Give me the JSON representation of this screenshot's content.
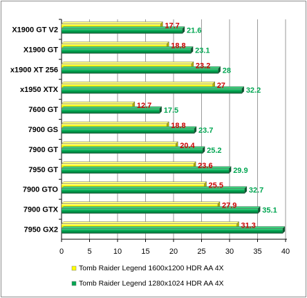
{
  "chart_data": {
    "type": "bar",
    "orientation": "horizontal",
    "categories": [
      "X1900 GT V2",
      "X1900 GT",
      "x1900 XT 256",
      "x1950 XTX",
      "7600 GT",
      "7900 GS",
      "7900 GT",
      "7950 GT",
      "7900 GTO",
      "7900 GTX",
      "7950 GX2"
    ],
    "series": [
      {
        "name": "Tomb Raider Legend 1600x1200 HDR AA 4X",
        "color": "#ffff00",
        "label_color": "#cc0000",
        "values": [
          17.7,
          18.8,
          23.2,
          27,
          12.7,
          18.8,
          20.4,
          23.6,
          25.5,
          27.9,
          31.3
        ],
        "labels": [
          "17.7",
          "18.8",
          "23.2",
          "27",
          "12.7",
          "18.8",
          "20.4",
          "23.6",
          "25.5",
          "27.9",
          "31.3"
        ]
      },
      {
        "name": "Tomb Raider Legend 1280x1024 HDR AA 4X",
        "color": "#00a651",
        "label_color": "#00a651",
        "values": [
          21.6,
          23.1,
          28,
          32.2,
          17.5,
          23.7,
          25.2,
          29.9,
          32.7,
          35.1,
          39.5
        ],
        "labels": [
          "21.6",
          "23.1",
          "28",
          "32.2",
          "17.5",
          "23.7",
          "25.2",
          "29.9",
          "32.7",
          "35.1",
          ""
        ]
      }
    ],
    "x_ticks": [
      "0",
      "5",
      "10",
      "15",
      "20",
      "25",
      "30",
      "35",
      "40"
    ],
    "xlim": [
      0,
      40
    ],
    "grid": true,
    "legend_position": "bottom"
  }
}
